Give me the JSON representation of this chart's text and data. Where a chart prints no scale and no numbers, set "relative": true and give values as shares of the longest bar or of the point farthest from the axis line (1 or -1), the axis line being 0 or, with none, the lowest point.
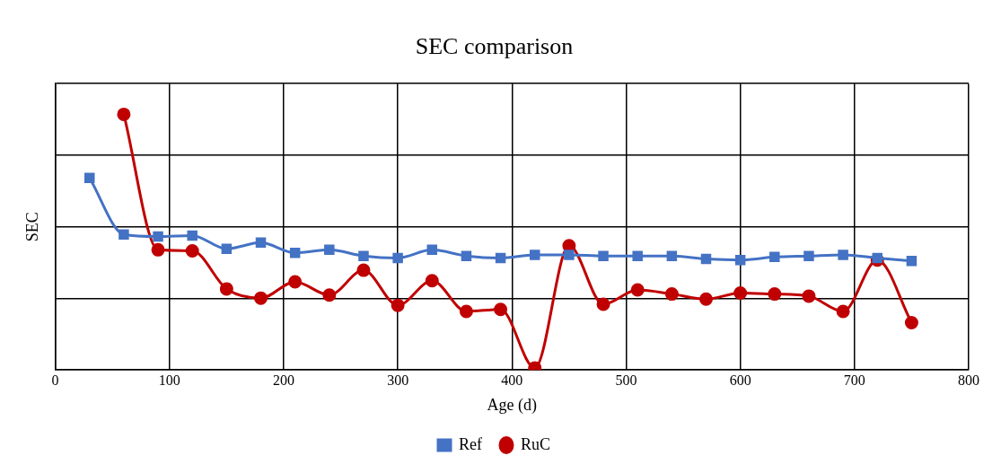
{
  "chart_data": {
    "type": "line",
    "title": "SEC comparison",
    "xlabel": "Age (d)",
    "ylabel": "SEC",
    "relative": true,
    "x": [
      30,
      60,
      90,
      120,
      150,
      180,
      210,
      240,
      270,
      300,
      330,
      360,
      390,
      420,
      450,
      480,
      510,
      540,
      570,
      600,
      630,
      660,
      690,
      720,
      750
    ],
    "xlim": [
      0,
      800
    ],
    "xticks": [
      0,
      100,
      200,
      300,
      400,
      500,
      600,
      700,
      800
    ],
    "series": [
      {
        "name": "RuC",
        "color": "#c00000",
        "marker": "circle",
        "values": [
          null,
          1,
          0.47,
          0.466,
          0.317,
          0.281,
          0.345,
          0.293,
          0.39,
          0.253,
          0.349,
          0.229,
          0.237,
          0.008,
          0.486,
          0.257,
          0.313,
          0.297,
          0.277,
          0.301,
          0.297,
          0.289,
          0.229,
          0.43,
          0.185
        ]
      },
      {
        "name": "Ref",
        "color": "#4472c4",
        "marker": "square",
        "values": [
          0.751,
          0.53,
          0.522,
          0.526,
          0.474,
          0.498,
          0.458,
          0.47,
          0.446,
          0.438,
          0.47,
          0.446,
          0.438,
          0.45,
          0.45,
          0.446,
          0.446,
          0.446,
          0.434,
          0.43,
          0.442,
          0.446,
          0.45,
          0.438,
          0.426
        ]
      }
    ],
    "grid": true,
    "legend": "bottom",
    "line_style": "solid"
  }
}
